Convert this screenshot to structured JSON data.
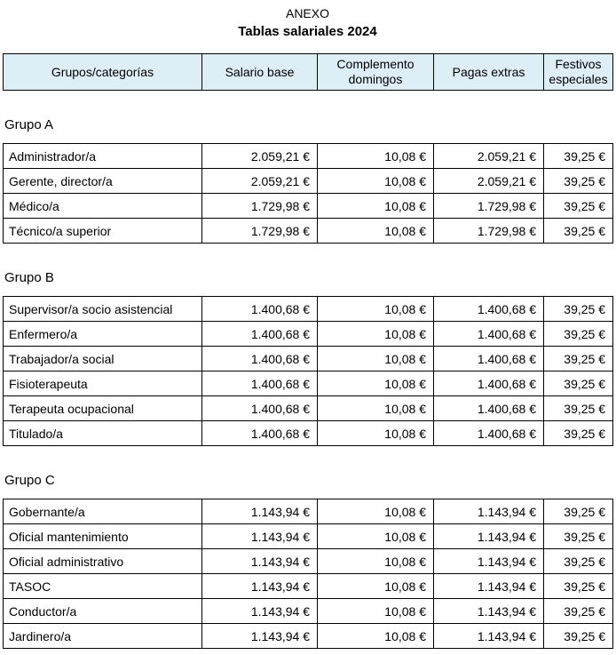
{
  "document": {
    "title_line1": "ANEXO",
    "title_line2": "Tablas salariales 2024"
  },
  "table": {
    "columns": [
      "Grupos/categorías",
      "Salario base",
      "Complemento domingos",
      "Pagas extras",
      "Festivos especiales"
    ],
    "groups": [
      {
        "label": "Grupo A",
        "rows": [
          {
            "label": "Administrador/a",
            "values": [
              "2.059,21 €",
              "10,08 €",
              "2.059,21 €",
              "39,25 €"
            ]
          },
          {
            "label": "Gerente, director/a",
            "values": [
              "2.059,21 €",
              "10,08 €",
              "2.059,21 €",
              "39,25 €"
            ]
          },
          {
            "label": "Médico/a",
            "values": [
              "1.729,98 €",
              "10,08 €",
              "1.729,98 €",
              "39,25 €"
            ]
          },
          {
            "label": "Técnico/a superior",
            "values": [
              "1.729,98 €",
              "10,08 €",
              "1.729,98 €",
              "39,25 €"
            ]
          }
        ]
      },
      {
        "label": "Grupo B",
        "rows": [
          {
            "label": "Supervisor/a socio asistencial",
            "values": [
              "1.400,68 €",
              "10,08 €",
              "1.400,68 €",
              "39,25 €"
            ]
          },
          {
            "label": "Enfermero/a",
            "values": [
              "1.400,68 €",
              "10,08 €",
              "1.400,68 €",
              "39,25 €"
            ]
          },
          {
            "label": "Trabajador/a social",
            "values": [
              "1.400,68 €",
              "10,08 €",
              "1.400,68 €",
              "39,25 €"
            ]
          },
          {
            "label": "Fisioterapeuta",
            "values": [
              "1.400,68 €",
              "10,08 €",
              "1.400,68 €",
              "39,25 €"
            ]
          },
          {
            "label": "Terapeuta ocupacional",
            "values": [
              "1.400,68 €",
              "10,08 €",
              "1.400,68 €",
              "39,25 €"
            ]
          },
          {
            "label": "Titulado/a",
            "values": [
              "1.400,68 €",
              "10,08 €",
              "1.400,68 €",
              "39,25 €"
            ]
          }
        ]
      },
      {
        "label": "Grupo C",
        "rows": [
          {
            "label": "Gobernante/a",
            "values": [
              "1.143,94 €",
              "10,08 €",
              "1.143,94 €",
              "39,25 €"
            ]
          },
          {
            "label": "Oficial mantenimiento",
            "values": [
              "1.143,94 €",
              "10,08 €",
              "1.143,94 €",
              "39,25 €"
            ]
          },
          {
            "label": "Oficial administrativo",
            "values": [
              "1.143,94 €",
              "10,08 €",
              "1.143,94 €",
              "39,25 €"
            ]
          },
          {
            "label": "TASOC",
            "values": [
              "1.143,94 €",
              "10,08 €",
              "1.143,94 €",
              "39,25 €"
            ]
          },
          {
            "label": "Conductor/a",
            "values": [
              "1.143,94 €",
              "10,08 €",
              "1.143,94 €",
              "39,25 €"
            ]
          },
          {
            "label": "Jardinero/a",
            "values": [
              "1.143,94 €",
              "10,08 €",
              "1.143,94 €",
              "39,25 €"
            ]
          }
        ]
      }
    ]
  },
  "colors": {
    "header_background": "#ddeef7",
    "border": "#000000",
    "text": "#000000"
  }
}
